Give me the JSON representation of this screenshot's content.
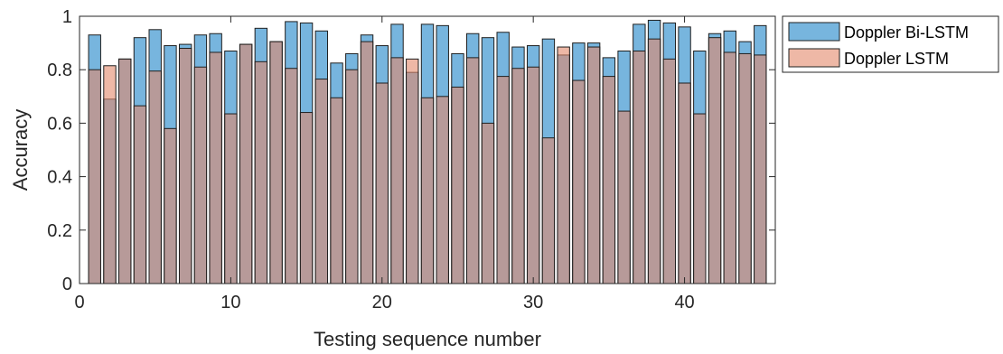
{
  "chart_data": {
    "type": "bar",
    "title": "",
    "xlabel": "Testing sequence number",
    "ylabel": "Accuracy",
    "xlim": [
      0,
      46
    ],
    "ylim": [
      0,
      1
    ],
    "xticks": [
      0,
      10,
      20,
      30,
      40
    ],
    "yticks": [
      0,
      0.2,
      0.4,
      0.6,
      0.8,
      1
    ],
    "xtick_labels": [
      "0",
      "10",
      "20",
      "30",
      "40"
    ],
    "ytick_labels": [
      "0",
      "0.2",
      "0.4",
      "0.6",
      "0.8",
      "1"
    ],
    "grid": false,
    "legend_position": "outside-top-right",
    "overlap": "overlaid",
    "x": [
      1,
      2,
      3,
      4,
      5,
      6,
      7,
      8,
      9,
      10,
      11,
      12,
      13,
      14,
      15,
      16,
      17,
      18,
      19,
      20,
      21,
      22,
      23,
      24,
      25,
      26,
      27,
      28,
      29,
      30,
      31,
      32,
      33,
      34,
      35,
      36,
      37,
      38,
      39,
      40,
      41,
      42,
      43,
      44,
      45
    ],
    "series": [
      {
        "name": "Doppler Bi-LSTM",
        "color": "#77b5de",
        "edge_color": "#1f1f1f",
        "opacity": 1,
        "values": [
          0.93,
          0.69,
          0.84,
          0.92,
          0.95,
          0.89,
          0.895,
          0.93,
          0.935,
          0.87,
          0.895,
          0.955,
          0.905,
          0.98,
          0.975,
          0.945,
          0.825,
          0.86,
          0.93,
          0.89,
          0.97,
          0.79,
          0.97,
          0.965,
          0.86,
          0.935,
          0.92,
          0.94,
          0.885,
          0.89,
          0.915,
          0.855,
          0.9,
          0.9,
          0.845,
          0.87,
          0.97,
          0.985,
          0.975,
          0.96,
          0.87,
          0.935,
          0.945,
          0.905,
          0.965
        ]
      },
      {
        "name": "Doppler LSTM",
        "color": "#e3896a",
        "edge_color": "#1f1f1f",
        "opacity": 0.6,
        "values": [
          0.8,
          0.815,
          0.84,
          0.665,
          0.795,
          0.58,
          0.88,
          0.81,
          0.865,
          0.635,
          0.895,
          0.83,
          0.905,
          0.805,
          0.64,
          0.765,
          0.695,
          0.8,
          0.905,
          0.75,
          0.845,
          0.84,
          0.695,
          0.7,
          0.735,
          0.845,
          0.6,
          0.775,
          0.805,
          0.81,
          0.545,
          0.885,
          0.76,
          0.885,
          0.775,
          0.645,
          0.87,
          0.915,
          0.84,
          0.75,
          0.635,
          0.92,
          0.865,
          0.86,
          0.855
        ]
      }
    ]
  }
}
